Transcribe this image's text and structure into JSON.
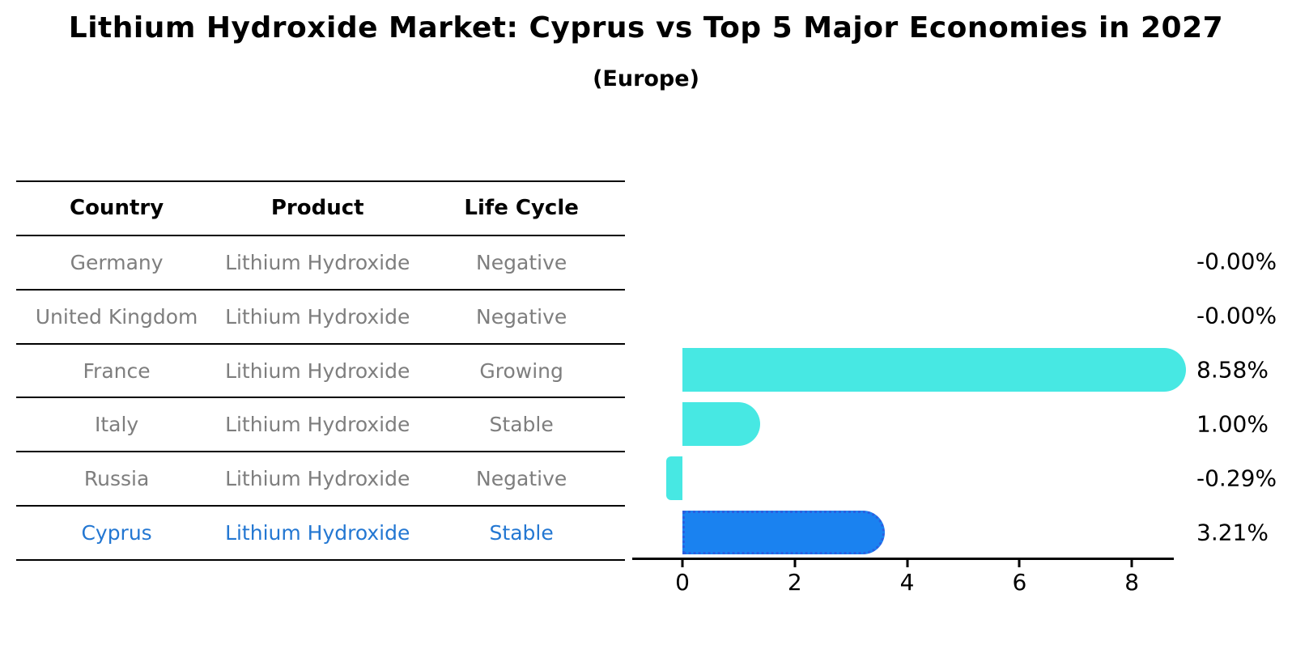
{
  "title": "Lithium Hydroxide Market: Cyprus vs Top 5 Major Economies in 2027",
  "subtitle": "(Europe)",
  "table": {
    "headers": [
      "Country",
      "Product",
      "Life Cycle"
    ],
    "rows": [
      {
        "country": "Germany",
        "product": "Lithium Hydroxide",
        "life_cycle": "Negative",
        "highlight": false
      },
      {
        "country": "United Kingdom",
        "product": "Lithium Hydroxide",
        "life_cycle": "Negative",
        "highlight": false
      },
      {
        "country": "France",
        "product": "Lithium Hydroxide",
        "life_cycle": "Growing",
        "highlight": false
      },
      {
        "country": "Italy",
        "product": "Lithium Hydroxide",
        "life_cycle": "Stable",
        "highlight": false
      },
      {
        "country": "Russia",
        "product": "Lithium Hydroxide",
        "life_cycle": "Negative",
        "highlight": false
      },
      {
        "country": "Cyprus",
        "product": "Lithium Hydroxide",
        "life_cycle": "Stable",
        "highlight": true
      }
    ]
  },
  "chart_data": {
    "type": "bar",
    "orientation": "horizontal",
    "categories": [
      "Germany",
      "United Kingdom",
      "France",
      "Italy",
      "Russia",
      "Cyprus"
    ],
    "values": [
      -0.0,
      -0.0,
      8.58,
      1.0,
      -0.29,
      3.21
    ],
    "value_labels": [
      "-0.00%",
      "-0.00%",
      "8.58%",
      "1.00%",
      "-0.29%",
      "3.21%"
    ],
    "title": "Lithium Hydroxide Market: Cyprus vs Top 5 Major Economies in 2027 (Europe)",
    "xlabel": "",
    "ylabel": "",
    "xticks": [
      0,
      2,
      4,
      6,
      8
    ],
    "xlim": [
      -0.9,
      8.75
    ],
    "grid": false,
    "legend": false,
    "highlight_index": 5,
    "bar_color": "#47e8e3",
    "highlight_bar_color": "#1a82f0",
    "highlight_text_color": "#2377d2"
  }
}
